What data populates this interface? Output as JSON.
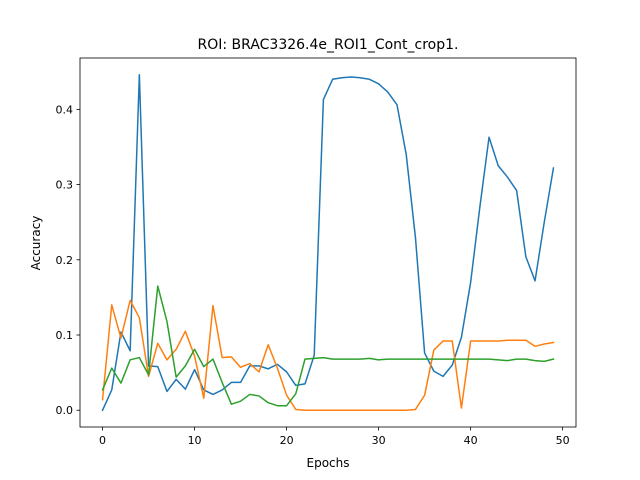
{
  "chart_data": {
    "type": "line",
    "title": "ROI: BRAC3326.4e_ROI1_Cont_crop1.",
    "xlabel": "Epochs",
    "ylabel": "Accuracy",
    "xlim": [
      -2.45,
      51.45
    ],
    "ylim": [
      -0.0223,
      0.4683
    ],
    "xticks": [
      0,
      10,
      20,
      30,
      40,
      50
    ],
    "xtick_labels": [
      "0",
      "10",
      "20",
      "30",
      "40",
      "50"
    ],
    "yticks": [
      0.0,
      0.1,
      0.2,
      0.3,
      0.4
    ],
    "ytick_labels": [
      "0.0",
      "0.1",
      "0.2",
      "0.3",
      "0.4"
    ],
    "grid": false,
    "legend": "none",
    "x": [
      0,
      1,
      2,
      3,
      4,
      5,
      6,
      7,
      8,
      9,
      10,
      11,
      12,
      13,
      14,
      15,
      16,
      17,
      18,
      19,
      20,
      21,
      22,
      23,
      24,
      25,
      26,
      27,
      28,
      29,
      30,
      31,
      32,
      33,
      34,
      35,
      36,
      37,
      38,
      39,
      40,
      41,
      42,
      43,
      44,
      45,
      46,
      47,
      48,
      49
    ],
    "series": [
      {
        "color": "#1f77b4",
        "values": [
          0.0,
          0.027,
          0.104,
          0.079,
          0.446,
          0.059,
          0.058,
          0.025,
          0.041,
          0.028,
          0.054,
          0.027,
          0.021,
          0.027,
          0.037,
          0.037,
          0.059,
          0.059,
          0.055,
          0.061,
          0.051,
          0.033,
          0.035,
          0.073,
          0.413,
          0.44,
          0.442,
          0.443,
          0.442,
          0.44,
          0.434,
          0.423,
          0.406,
          0.34,
          0.23,
          0.076,
          0.052,
          0.045,
          0.06,
          0.097,
          0.17,
          0.27,
          0.363,
          0.325,
          0.31,
          0.292,
          0.204,
          0.172,
          0.25,
          0.322
        ]
      },
      {
        "color": "#ff7f0e",
        "values": [
          0.014,
          0.14,
          0.096,
          0.146,
          0.123,
          0.045,
          0.089,
          0.067,
          0.081,
          0.105,
          0.072,
          0.016,
          0.139,
          0.07,
          0.071,
          0.057,
          0.062,
          0.051,
          0.087,
          0.056,
          0.02,
          0.001,
          0.0,
          0.0,
          0.0,
          0.0,
          0.0,
          0.0,
          0.0,
          0.0,
          0.0,
          0.0,
          0.0,
          0.0,
          0.001,
          0.02,
          0.08,
          0.092,
          0.092,
          0.003,
          0.092,
          0.092,
          0.092,
          0.092,
          0.093,
          0.093,
          0.093,
          0.085,
          0.088,
          0.09
        ]
      },
      {
        "color": "#2ca02c",
        "values": [
          0.027,
          0.056,
          0.036,
          0.067,
          0.07,
          0.047,
          0.165,
          0.118,
          0.044,
          0.059,
          0.081,
          0.058,
          0.068,
          0.037,
          0.008,
          0.012,
          0.021,
          0.019,
          0.01,
          0.006,
          0.006,
          0.022,
          0.068,
          0.069,
          0.07,
          0.068,
          0.068,
          0.068,
          0.068,
          0.069,
          0.067,
          0.068,
          0.068,
          0.068,
          0.068,
          0.068,
          0.068,
          0.068,
          0.068,
          0.068,
          0.068,
          0.068,
          0.068,
          0.067,
          0.066,
          0.068,
          0.068,
          0.066,
          0.065,
          0.068
        ]
      }
    ]
  }
}
